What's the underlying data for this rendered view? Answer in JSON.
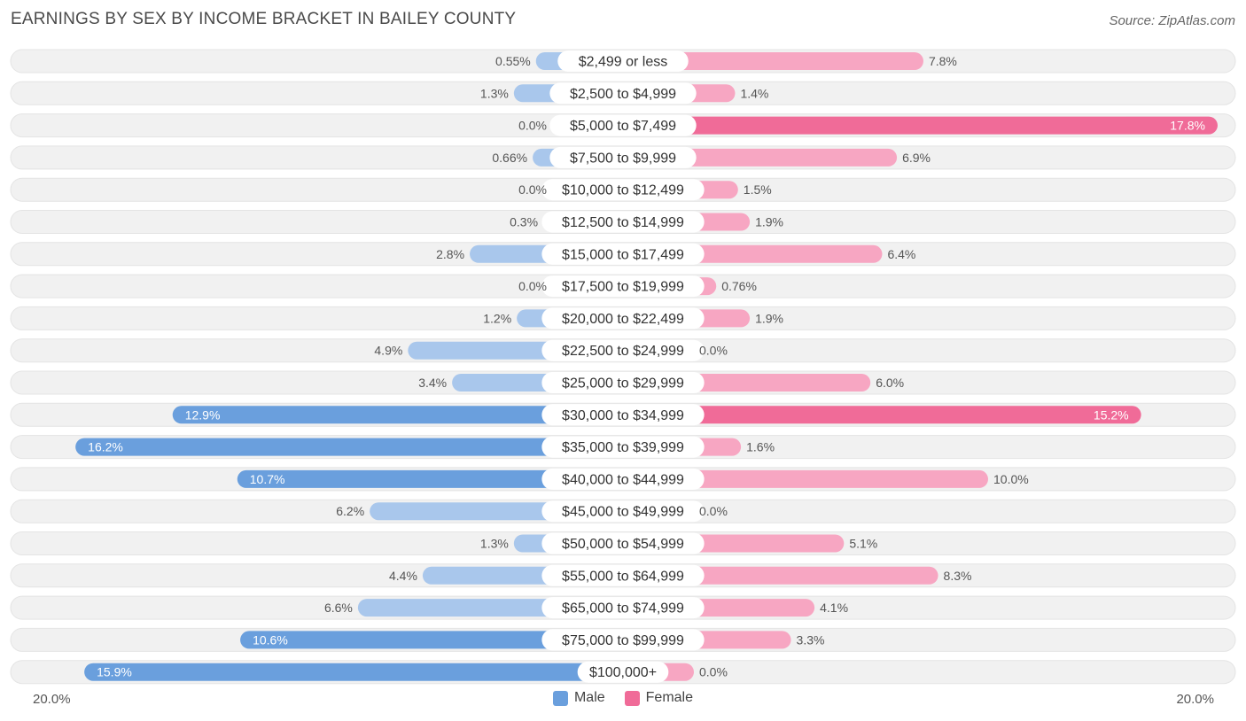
{
  "header": {
    "title": "EARNINGS BY SEX BY INCOME BRACKET IN BAILEY COUNTY",
    "source": "Source: ZipAtlas.com"
  },
  "axis": {
    "left_label": "20.0%",
    "right_label": "20.0%"
  },
  "legend": {
    "male_label": "Male",
    "female_label": "Female"
  },
  "colors": {
    "male_dark": "#6a9fdd",
    "male_light": "#a9c7ec",
    "female_dark": "#f06b98",
    "female_light": "#f7a6c2",
    "row_bg": "#f1f1f1"
  },
  "chart_data": {
    "type": "bar",
    "orientation": "horizontal-diverging",
    "title": "EARNINGS BY SEX BY INCOME BRACKET IN BAILEY COUNTY",
    "xlim": [
      -20,
      20
    ],
    "categories": [
      "$2,499 or less",
      "$2,500 to $4,999",
      "$5,000 to $7,499",
      "$7,500 to $9,999",
      "$10,000 to $12,499",
      "$12,500 to $14,999",
      "$15,000 to $17,499",
      "$17,500 to $19,999",
      "$20,000 to $22,499",
      "$22,500 to $24,999",
      "$25,000 to $29,999",
      "$30,000 to $34,999",
      "$35,000 to $39,999",
      "$40,000 to $44,999",
      "$45,000 to $49,999",
      "$50,000 to $54,999",
      "$55,000 to $64,999",
      "$65,000 to $74,999",
      "$75,000 to $99,999",
      "$100,000+"
    ],
    "series": [
      {
        "name": "Male",
        "values": [
          0.55,
          1.3,
          0.0,
          0.66,
          0.0,
          0.3,
          2.8,
          0.0,
          1.2,
          4.9,
          3.4,
          12.9,
          16.2,
          10.7,
          6.2,
          1.3,
          4.4,
          6.6,
          10.6,
          15.9
        ],
        "labels": [
          "0.55%",
          "1.3%",
          "0.0%",
          "0.66%",
          "0.0%",
          "0.3%",
          "2.8%",
          "0.0%",
          "1.2%",
          "4.9%",
          "3.4%",
          "12.9%",
          "16.2%",
          "10.7%",
          "6.2%",
          "1.3%",
          "4.4%",
          "6.6%",
          "10.6%",
          "15.9%"
        ]
      },
      {
        "name": "Female",
        "values": [
          7.8,
          1.4,
          17.8,
          6.9,
          1.5,
          1.9,
          6.4,
          0.76,
          1.9,
          0.0,
          6.0,
          15.2,
          1.6,
          10.0,
          0.0,
          5.1,
          8.3,
          4.1,
          3.3,
          0.0
        ],
        "labels": [
          "7.8%",
          "1.4%",
          "17.8%",
          "6.9%",
          "1.5%",
          "1.9%",
          "6.4%",
          "0.76%",
          "1.9%",
          "0.0%",
          "6.0%",
          "15.2%",
          "1.6%",
          "10.0%",
          "0.0%",
          "5.1%",
          "8.3%",
          "4.1%",
          "3.3%",
          "0.0%"
        ]
      }
    ]
  }
}
